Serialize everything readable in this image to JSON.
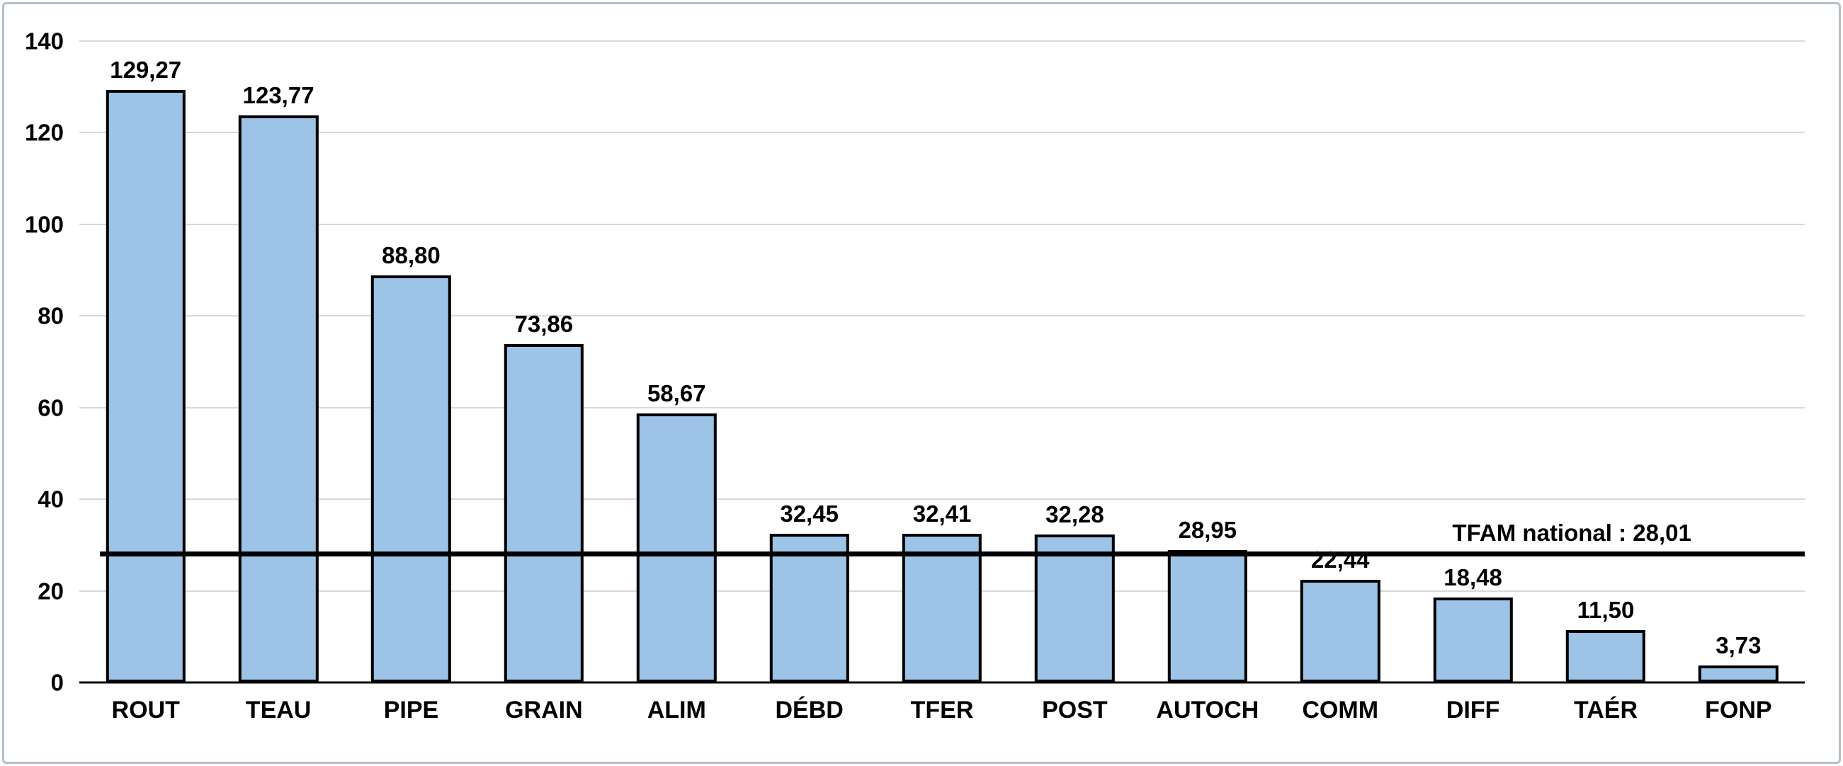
{
  "chart_data": {
    "type": "bar",
    "title": "",
    "xlabel": "",
    "ylabel": "",
    "categories": [
      "ROUT",
      "TEAU",
      "PIPE",
      "GRAIN",
      "ALIM",
      "DÉBD",
      "TFER",
      "POST",
      "AUTOCH",
      "COMM",
      "DIFF",
      "TAÉR",
      "FONP"
    ],
    "values": [
      129.27,
      123.77,
      88.8,
      73.86,
      58.67,
      32.45,
      32.41,
      32.28,
      28.95,
      22.44,
      18.48,
      11.5,
      3.73
    ],
    "value_labels": [
      "129,27",
      "123,77",
      "88,80",
      "73,86",
      "58,67",
      "32,45",
      "32,41",
      "32,28",
      "28,95",
      "22,44",
      "18,48",
      "11,50",
      "3,73"
    ],
    "ylim": [
      0,
      140
    ],
    "yticks": [
      0,
      20,
      40,
      60,
      80,
      100,
      120,
      140
    ],
    "grid": true,
    "legend_position": "none",
    "reference_line": {
      "value": 28.01,
      "label": "TFAM national : 28,01"
    },
    "colors": {
      "bar_fill": "#9DC3E6",
      "bar_border": "#000000",
      "gridline": "#D9D9D9",
      "axis": "#000000",
      "reference_line": "#000000",
      "text": "#000000"
    }
  }
}
